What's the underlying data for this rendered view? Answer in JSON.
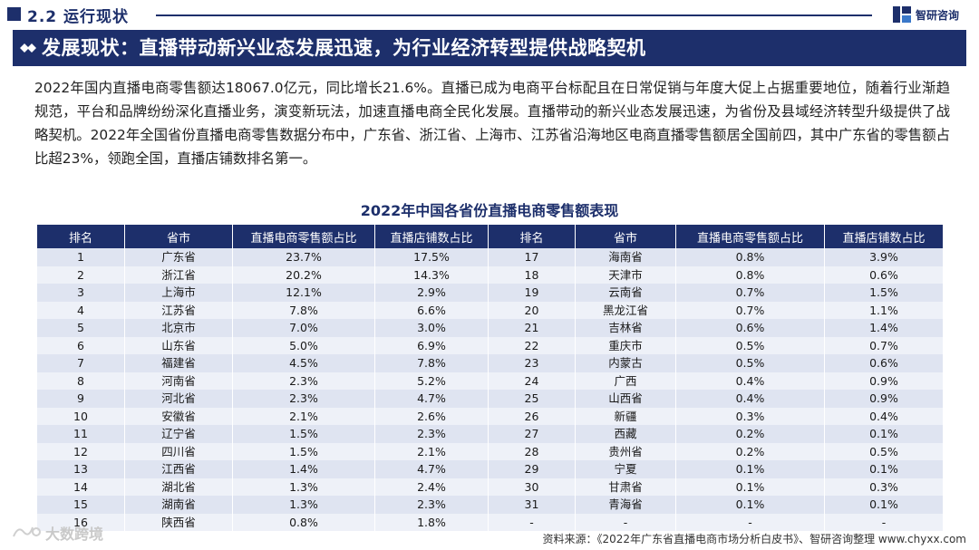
{
  "section": {
    "title": "2.2 运行现状"
  },
  "brand": {
    "name": "智研咨询"
  },
  "headline": "发展现状：直播带动新兴业态发展迅速，为行业经济转型提供战略契机",
  "paragraph": "2022年国内直播电商零售额达18067.0亿元，同比增长21.6%。直播已成为电商平台标配且在日常促销与年度大促上占据重要地位，随着行业渐趋规范，平台和品牌纷纷深化直播业务，演变新玩法，加速直播电商全民化发展。直播带动的新兴业态发展迅速，为省份及县域经济转型升级提供了战略契机。2022年全国省份直播电商零售数据分布中，广东省、浙江省、上海市、江苏省沿海地区电商直播零售额居全国前四，其中广东省的零售额占比超23%，领跑全国，直播店铺数排名第一。",
  "table": {
    "title": "2022年中国各省份直播电商零售额表现",
    "headers": [
      "排名",
      "省市",
      "直播电商零售额占比",
      "直播店铺数占比",
      "排名",
      "省市",
      "直播电商零售额占比",
      "直播店铺数占比"
    ],
    "rows": [
      [
        "1",
        "广东省",
        "23.7%",
        "17.5%",
        "17",
        "海南省",
        "0.8%",
        "3.9%"
      ],
      [
        "2",
        "浙江省",
        "20.2%",
        "14.3%",
        "18",
        "天津市",
        "0.8%",
        "0.6%"
      ],
      [
        "3",
        "上海市",
        "12.1%",
        "2.9%",
        "19",
        "云南省",
        "0.7%",
        "1.5%"
      ],
      [
        "4",
        "江苏省",
        "7.8%",
        "6.6%",
        "20",
        "黑龙江省",
        "0.7%",
        "1.1%"
      ],
      [
        "5",
        "北京市",
        "7.0%",
        "3.0%",
        "21",
        "吉林省",
        "0.6%",
        "1.4%"
      ],
      [
        "6",
        "山东省",
        "5.0%",
        "6.9%",
        "22",
        "重庆市",
        "0.5%",
        "0.7%"
      ],
      [
        "7",
        "福建省",
        "4.5%",
        "7.8%",
        "23",
        "内蒙古",
        "0.5%",
        "0.6%"
      ],
      [
        "8",
        "河南省",
        "2.3%",
        "5.2%",
        "24",
        "广西",
        "0.4%",
        "0.9%"
      ],
      [
        "9",
        "河北省",
        "2.3%",
        "4.7%",
        "25",
        "山西省",
        "0.4%",
        "0.9%"
      ],
      [
        "10",
        "安徽省",
        "2.1%",
        "2.6%",
        "26",
        "新疆",
        "0.3%",
        "0.4%"
      ],
      [
        "11",
        "辽宁省",
        "1.5%",
        "2.3%",
        "27",
        "西藏",
        "0.2%",
        "0.1%"
      ],
      [
        "12",
        "四川省",
        "1.5%",
        "2.1%",
        "28",
        "贵州省",
        "0.2%",
        "0.5%"
      ],
      [
        "13",
        "江西省",
        "1.4%",
        "4.7%",
        "29",
        "宁夏",
        "0.1%",
        "0.1%"
      ],
      [
        "14",
        "湖北省",
        "1.3%",
        "2.4%",
        "30",
        "甘肃省",
        "0.1%",
        "0.3%"
      ],
      [
        "15",
        "湖南省",
        "1.3%",
        "2.3%",
        "31",
        "青海省",
        "0.1%",
        "0.1%"
      ],
      [
        "16",
        "陕西省",
        "0.8%",
        "1.8%",
        "-",
        "-",
        "-",
        "-"
      ]
    ]
  },
  "source": "资料来源：《2022年广东省直播电商市场分析白皮书》、智研咨询整理 www.chyxx.com",
  "watermark": "大数跨境",
  "colors": {
    "navy": "#1d2f6b",
    "row_odd": "#dfe4f1",
    "row_even": "#eef1f8"
  }
}
